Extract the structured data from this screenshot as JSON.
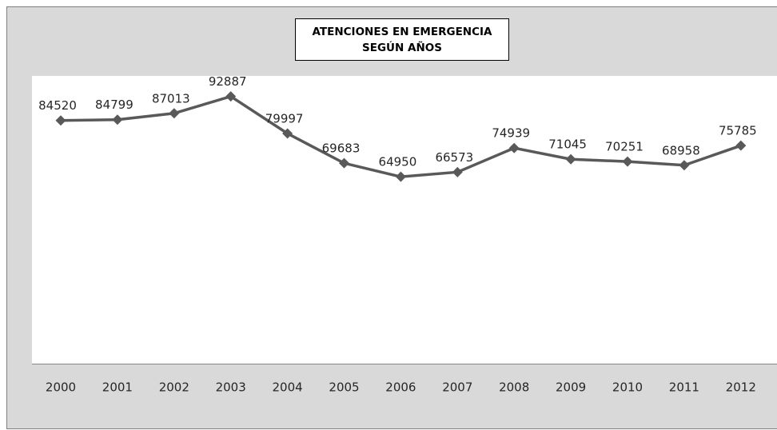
{
  "chart_data": {
    "type": "line",
    "title": [
      "ATENCIONES EN EMERGENCIA",
      "SEGÚN AÑOS"
    ],
    "categories": [
      "2000",
      "2001",
      "2002",
      "2003",
      "2004",
      "2005",
      "2006",
      "2007",
      "2008",
      "2009",
      "2010",
      "2011",
      "2012"
    ],
    "series": [
      {
        "name": "Atenciones",
        "color": "#595959",
        "values": [
          84520,
          84799,
          87013,
          92887,
          79997,
          69683,
          64950,
          66573,
          74939,
          71045,
          70251,
          68958,
          75785
        ]
      }
    ],
    "ylim": [
      0,
      100000
    ]
  }
}
